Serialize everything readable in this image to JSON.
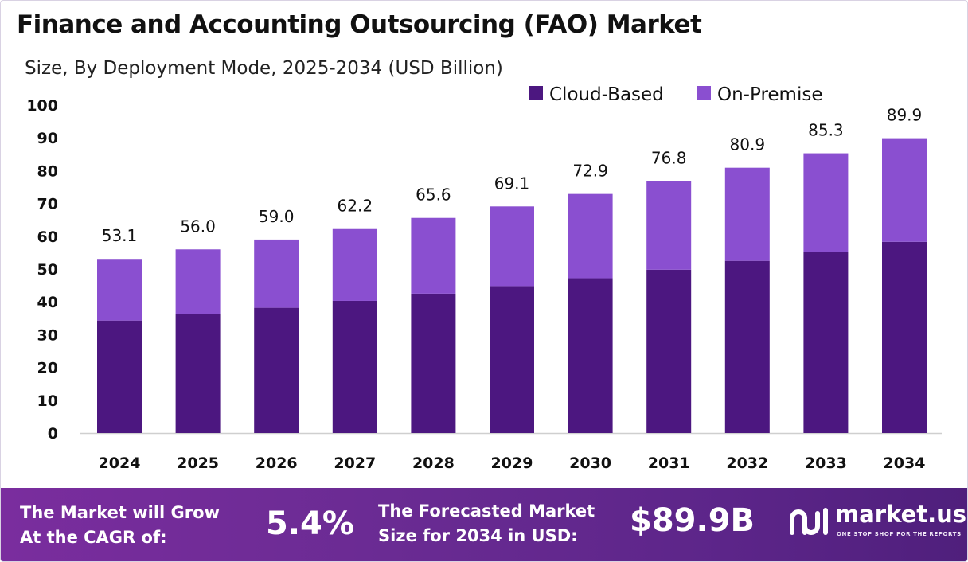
{
  "chart_data": {
    "type": "bar",
    "stacked": true,
    "title": "Finance and Accounting Outsourcing (FAO) Market",
    "subtitle": "Size, By Deployment Mode, 2025-2034 (USD Billion)",
    "categories": [
      "2024",
      "2025",
      "2026",
      "2027",
      "2028",
      "2029",
      "2030",
      "2031",
      "2032",
      "2033",
      "2034"
    ],
    "series": [
      {
        "name": "Cloud-Based",
        "color": "#4c1780",
        "values": [
          34.3,
          36.2,
          38.2,
          40.3,
          42.5,
          44.8,
          47.2,
          49.8,
          52.5,
          55.3,
          58.3
        ]
      },
      {
        "name": "On-Premise",
        "color": "#8a4fd0",
        "values": [
          18.8,
          19.8,
          20.8,
          21.9,
          23.1,
          24.3,
          25.7,
          27.0,
          28.4,
          30.0,
          31.6
        ]
      }
    ],
    "totals": [
      "53.1",
      "56.0",
      "59.0",
      "62.2",
      "65.6",
      "69.1",
      "72.9",
      "76.8",
      "80.9",
      "85.3",
      "89.9"
    ],
    "yticks": [
      "0",
      "10",
      "20",
      "30",
      "40",
      "50",
      "60",
      "70",
      "80",
      "90",
      "100"
    ],
    "ylim": [
      0,
      100
    ],
    "grid": false,
    "legend_position": "top-right"
  },
  "footer": {
    "cagr_label_1": "The Market will Grow",
    "cagr_label_2": "At the CAGR of:",
    "cagr_value": "5.4%",
    "forecast_label_1": "The Forecasted Market",
    "forecast_label_2": "Size for 2034 in USD:",
    "forecast_value": "$89.9B",
    "brand": "market.us",
    "tagline": "ONE STOP SHOP FOR THE REPORTS"
  }
}
